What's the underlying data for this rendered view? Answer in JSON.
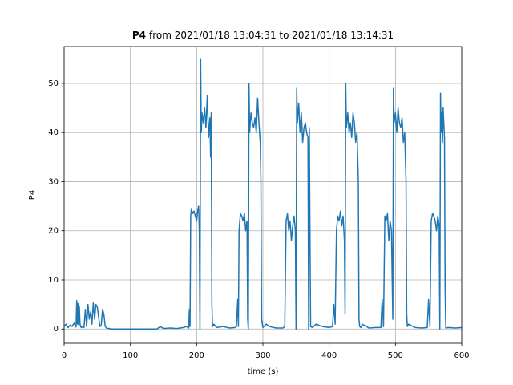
{
  "chart_data": {
    "type": "line",
    "title_bold": "P4",
    "title": "from 2021/01/18 13:04:31 to 2021/01/18 13:14:31",
    "xlabel": "time (s)",
    "ylabel": "P4",
    "xlim": [
      0,
      600
    ],
    "xticks": [
      0,
      100,
      200,
      300,
      400,
      500,
      600
    ],
    "ylim": [
      -2.9,
      57.5
    ],
    "yticks": [
      0,
      10,
      20,
      30,
      40,
      50
    ],
    "grid": true,
    "series": [
      {
        "color": "#1f77b4",
        "x": [
          0,
          3,
          6,
          9,
          12,
          15,
          18,
          19,
          20,
          21,
          22,
          23,
          24,
          25,
          26,
          27,
          28,
          30,
          32,
          34,
          36,
          38,
          40,
          42,
          44,
          46,
          48,
          50,
          52,
          54,
          56,
          58,
          60,
          62,
          64,
          66,
          68,
          70,
          72,
          80,
          100,
          120,
          140,
          145,
          150,
          160,
          170,
          180,
          185,
          188,
          189,
          190,
          191,
          192,
          194,
          196,
          198,
          200,
          202,
          203,
          204,
          205,
          206,
          207,
          208,
          210,
          212,
          214,
          216,
          218,
          220,
          221,
          222,
          223,
          224,
          226,
          230,
          240,
          250,
          258,
          260,
          262,
          263,
          264,
          266,
          268,
          270,
          272,
          274,
          276,
          277,
          278,
          279,
          280,
          282,
          284,
          286,
          288,
          290,
          292,
          294,
          296,
          297,
          298,
          300,
          305,
          310,
          320,
          330,
          333,
          335,
          337,
          339,
          341,
          343,
          345,
          347,
          349,
          350,
          351,
          352,
          354,
          356,
          358,
          360,
          362,
          364,
          366,
          368,
          369,
          370,
          371,
          372,
          375,
          380,
          390,
          400,
          405,
          407,
          409,
          411,
          413,
          415,
          417,
          419,
          421,
          423,
          424,
          425,
          426,
          428,
          430,
          432,
          434,
          436,
          438,
          440,
          442,
          444,
          445,
          446,
          448,
          450,
          460,
          470,
          478,
          480,
          482,
          484,
          486,
          488,
          490,
          492,
          494,
          496,
          497,
          498,
          500,
          502,
          504,
          506,
          508,
          510,
          512,
          514,
          516,
          517,
          518,
          520,
          530,
          540,
          548,
          550,
          552,
          554,
          556,
          558,
          560,
          562,
          564,
          566,
          567,
          568,
          569,
          570,
          571,
          572,
          573,
          574,
          575,
          576,
          580,
          590,
          600
        ],
        "values": [
          0.5,
          1,
          0.3,
          0.8,
          0.5,
          1.2,
          0.4,
          5.8,
          1,
          5.2,
          0.8,
          4.5,
          1,
          0.5,
          0.3,
          0.5,
          0.4,
          0.3,
          4,
          0.5,
          5,
          2,
          3.5,
          1,
          5.3,
          2,
          5,
          4.5,
          2.5,
          0.5,
          0.8,
          4,
          3,
          0.5,
          0.2,
          0.1,
          0.1,
          0,
          0,
          0,
          0,
          0,
          0,
          0.5,
          0.1,
          0.2,
          0.1,
          0.3,
          0.5,
          0.2,
          4,
          0.5,
          23,
          24.5,
          23.5,
          24,
          23,
          22,
          24.5,
          25,
          20,
          0,
          55,
          40,
          44,
          42,
          45,
          41,
          47.5,
          39,
          43,
          35,
          44,
          5,
          0.5,
          1,
          0.3,
          0.5,
          0.2,
          0.3,
          0.5,
          6,
          0.5,
          20,
          23.5,
          23,
          22,
          23.5,
          20,
          22,
          2,
          0,
          50,
          40,
          44,
          42,
          41,
          43,
          40,
          47,
          42,
          38,
          30,
          2,
          0.3,
          1,
          0.5,
          0.2,
          0.2,
          0.5,
          22,
          23.5,
          20,
          22,
          18,
          21,
          23,
          20,
          0,
          49,
          42,
          46,
          40,
          44,
          38,
          41,
          42,
          40,
          39,
          0,
          41,
          20,
          0.5,
          0.3,
          1,
          0.5,
          0.3,
          0.5,
          5,
          1,
          20,
          23,
          22,
          24,
          21,
          23,
          18,
          3,
          50,
          41,
          44,
          40,
          42,
          39,
          44,
          42,
          38,
          40,
          30,
          2,
          0.5,
          0.3,
          1,
          0.2,
          0.3,
          0.3,
          6,
          0.5,
          23,
          22,
          23.5,
          18,
          22,
          20,
          2,
          49,
          42,
          44,
          40,
          45,
          42,
          41,
          43,
          38,
          40,
          30,
          3,
          0.5,
          1,
          0.3,
          0.2,
          0.3,
          6,
          0.5,
          22,
          23.5,
          23,
          22,
          20,
          23,
          21,
          0,
          48,
          40,
          44,
          38,
          45,
          42,
          39,
          8,
          0.2,
          0.3,
          0.2,
          0.3
        ]
      }
    ]
  }
}
